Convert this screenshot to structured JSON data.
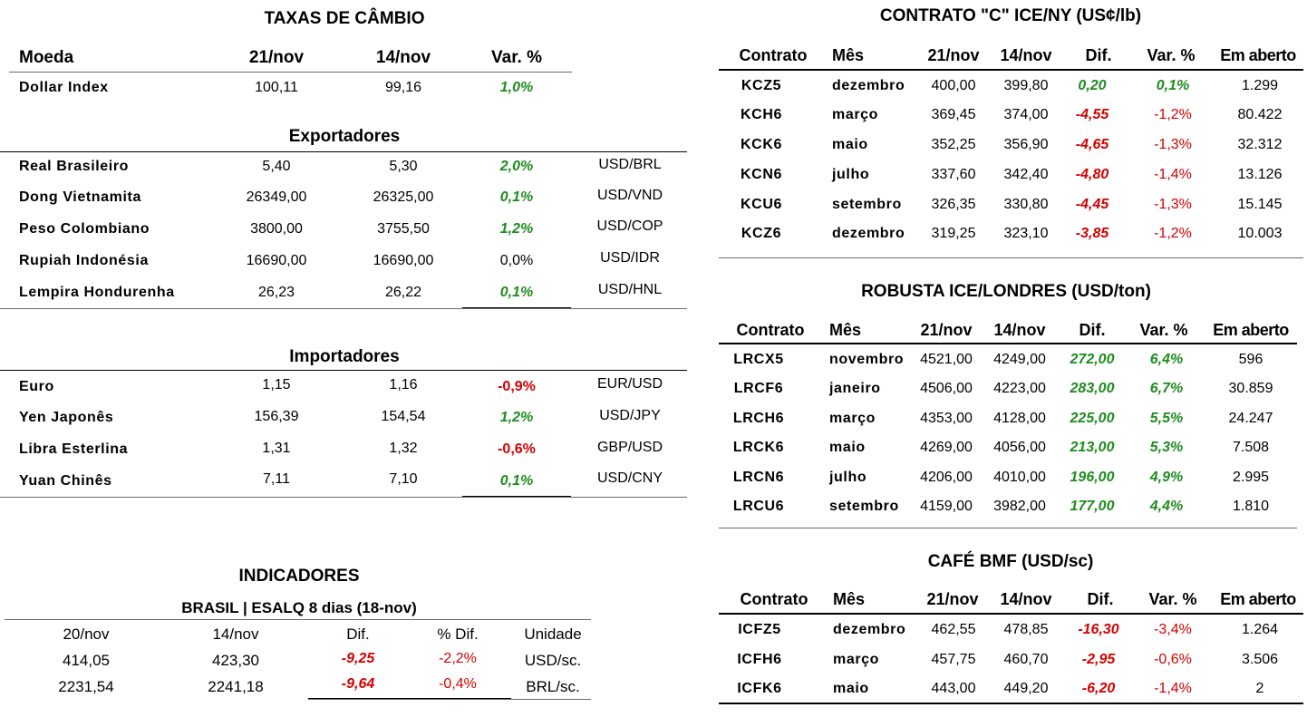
{
  "fx": {
    "title": "TAXAS DE CÂMBIO",
    "headers": [
      "Moeda",
      "21/nov",
      "14/nov",
      "Var. %"
    ],
    "dollar_index": {
      "name": "Dollar Index",
      "v1": "100,11",
      "v2": "99,16",
      "var": "1,0%"
    },
    "exporters_title": "Exportadores",
    "exporters": [
      {
        "name": "Real Brasileiro",
        "v1": "5,40",
        "v2": "5,30",
        "var": "2,0%",
        "pair": "USD/BRL"
      },
      {
        "name": "Dong Vietnamita",
        "v1": "26349,00",
        "v2": "26325,00",
        "var": "0,1%",
        "pair": "USD/VND"
      },
      {
        "name": "Peso Colombiano",
        "v1": "3800,00",
        "v2": "3755,50",
        "var": "1,2%",
        "pair": "USD/COP"
      },
      {
        "name": "Rupiah Indonésia",
        "v1": "16690,00",
        "v2": "16690,00",
        "var": "0,0%",
        "pair": "USD/IDR"
      },
      {
        "name": "Lempira Hondurenha",
        "v1": "26,23",
        "v2": "26,22",
        "var": "0,1%",
        "pair": "USD/HNL"
      }
    ],
    "importers_title": "Importadores",
    "importers": [
      {
        "name": "Euro",
        "v1": "1,15",
        "v2": "1,16",
        "var": "-0,9%",
        "pair": "EUR/USD"
      },
      {
        "name": "Yen Japonês",
        "v1": "156,39",
        "v2": "154,54",
        "var": "1,2%",
        "pair": "USD/JPY"
      },
      {
        "name": "Libra Esterlina",
        "v1": "1,31",
        "v2": "1,32",
        "var": "-0,6%",
        "pair": "GBP/USD"
      },
      {
        "name": "Yuan Chinês",
        "v1": "7,11",
        "v2": "7,10",
        "var": "0,1%",
        "pair": "USD/CNY"
      }
    ]
  },
  "indicators": {
    "title": "INDICADORES",
    "subtitle": "BRASIL | ESALQ 8 dias (18-nov)",
    "headers": [
      "20/nov",
      "14/nov",
      "Dif.",
      "% Dif.",
      "Unidade"
    ],
    "rows": [
      {
        "v1": "414,05",
        "v2": "423,30",
        "dif": "-9,25",
        "pdif": "-2,2%",
        "unit": "USD/sc."
      },
      {
        "v1": "2231,54",
        "v2": "2241,18",
        "dif": "-9,64",
        "pdif": "-0,4%",
        "unit": "BRL/sc."
      }
    ]
  },
  "contracts": {
    "headers": [
      "Contrato",
      "Mês",
      "21/nov",
      "14/nov",
      "Dif.",
      "Var. %",
      "Em aberto"
    ],
    "ice_ny": {
      "title": "CONTRATO \"C\" ICE/NY (US¢/lb)",
      "rows": [
        {
          "code": "KCZ5",
          "month": "dezembro",
          "v1": "400,00",
          "v2": "399,80",
          "dif": "0,20",
          "var": "0,1%",
          "open": "1.299"
        },
        {
          "code": "KCH6",
          "month": "março",
          "v1": "369,45",
          "v2": "374,00",
          "dif": "-4,55",
          "var": "-1,2%",
          "open": "80.422"
        },
        {
          "code": "KCK6",
          "month": "maio",
          "v1": "352,25",
          "v2": "356,90",
          "dif": "-4,65",
          "var": "-1,3%",
          "open": "32.312"
        },
        {
          "code": "KCN6",
          "month": "julho",
          "v1": "337,60",
          "v2": "342,40",
          "dif": "-4,80",
          "var": "-1,4%",
          "open": "13.126"
        },
        {
          "code": "KCU6",
          "month": "setembro",
          "v1": "326,35",
          "v2": "330,80",
          "dif": "-4,45",
          "var": "-1,3%",
          "open": "15.145"
        },
        {
          "code": "KCZ6",
          "month": "dezembro",
          "v1": "319,25",
          "v2": "323,10",
          "dif": "-3,85",
          "var": "-1,2%",
          "open": "10.003"
        }
      ]
    },
    "robusta": {
      "title": "ROBUSTA ICE/LONDRES (USD/ton)",
      "rows": [
        {
          "code": "LRCX5",
          "month": "novembro",
          "v1": "4521,00",
          "v2": "4249,00",
          "dif": "272,00",
          "var": "6,4%",
          "open": "596"
        },
        {
          "code": "LRCF6",
          "month": "janeiro",
          "v1": "4506,00",
          "v2": "4223,00",
          "dif": "283,00",
          "var": "6,7%",
          "open": "30.859"
        },
        {
          "code": "LRCH6",
          "month": "março",
          "v1": "4353,00",
          "v2": "4128,00",
          "dif": "225,00",
          "var": "5,5%",
          "open": "24.247"
        },
        {
          "code": "LRCK6",
          "month": "maio",
          "v1": "4269,00",
          "v2": "4056,00",
          "dif": "213,00",
          "var": "5,3%",
          "open": "7.508"
        },
        {
          "code": "LRCN6",
          "month": "julho",
          "v1": "4206,00",
          "v2": "4010,00",
          "dif": "196,00",
          "var": "4,9%",
          "open": "2.995"
        },
        {
          "code": "LRCU6",
          "month": "setembro",
          "v1": "4159,00",
          "v2": "3982,00",
          "dif": "177,00",
          "var": "4,4%",
          "open": "1.810"
        }
      ]
    },
    "bmf": {
      "title": "CAFÉ BMF (USD/sc)",
      "rows": [
        {
          "code": "ICFZ5",
          "month": "dezembro",
          "v1": "462,55",
          "v2": "478,85",
          "dif": "-16,30",
          "var": "-3,4%",
          "open": "1.264"
        },
        {
          "code": "ICFH6",
          "month": "março",
          "v1": "457,75",
          "v2": "460,70",
          "dif": "-2,95",
          "var": "-0,6%",
          "open": "3.506"
        },
        {
          "code": "ICFK6",
          "month": "maio",
          "v1": "443,00",
          "v2": "449,20",
          "dif": "-6,20",
          "var": "-1,4%",
          "open": "2"
        }
      ]
    }
  },
  "colors": {
    "positive": "#1f8c1f",
    "negative": "#d40000"
  }
}
